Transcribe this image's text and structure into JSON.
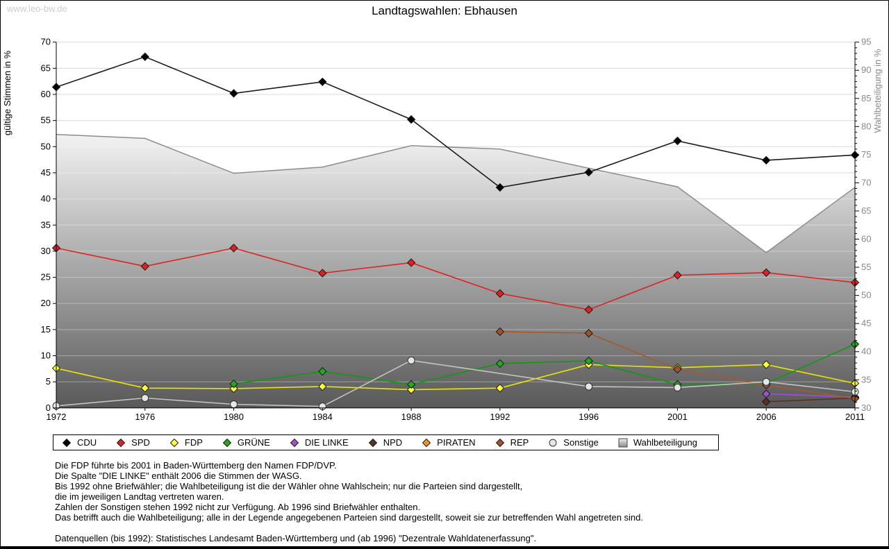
{
  "watermark": "www.leo-bw.de",
  "chart_data": {
    "type": "line",
    "title": "Landtagswahlen: Ebhausen",
    "categories": [
      "1972",
      "1976",
      "1980",
      "1984",
      "1988",
      "1992",
      "1996",
      "2001",
      "2006",
      "2011"
    ],
    "left_axis": {
      "label": "gültige Stimmen in %",
      "min": 0,
      "max": 70,
      "tick_step": 5
    },
    "right_axis": {
      "label": "Wahlbeteiligung in %",
      "min": 30,
      "max": 95,
      "tick_step": 5,
      "minor_step": 1
    },
    "grid": "horizontal",
    "legend_position": "bottom",
    "series": [
      {
        "name": "CDU",
        "axis": "left",
        "type": "line",
        "marker": "diamond",
        "color": "#1a1a1a",
        "fill": "#000000",
        "values": [
          61.4,
          67.2,
          60.2,
          62.4,
          55.2,
          42.2,
          45.1,
          51.1,
          47.4,
          48.4
        ]
      },
      {
        "name": "SPD",
        "axis": "left",
        "type": "line",
        "marker": "diamond",
        "color": "#dd2222",
        "fill": "#e02020",
        "values": [
          30.6,
          27.1,
          30.6,
          25.8,
          27.8,
          21.9,
          18.8,
          25.4,
          25.9,
          24.0
        ]
      },
      {
        "name": "FDP",
        "axis": "left",
        "type": "line",
        "marker": "diamond",
        "color": "#e8e800",
        "fill": "#ffff33",
        "values": [
          7.6,
          3.8,
          3.7,
          4.1,
          3.5,
          3.8,
          8.3,
          7.7,
          8.3,
          4.7
        ]
      },
      {
        "name": "GRÜNE",
        "axis": "left",
        "type": "line",
        "marker": "diamond",
        "color": "#119911",
        "fill": "#1faa1f",
        "values": [
          null,
          null,
          4.6,
          7.0,
          4.5,
          8.5,
          9.0,
          4.5,
          4.7,
          12.2
        ]
      },
      {
        "name": "DIE LINKE",
        "axis": "left",
        "type": "line",
        "marker": "diamond",
        "color": "#a04fd0",
        "fill": "#a050c8",
        "values": [
          null,
          null,
          null,
          null,
          null,
          null,
          null,
          null,
          2.7,
          2.1
        ]
      },
      {
        "name": "NPD",
        "axis": "left",
        "type": "line",
        "marker": "diamond",
        "color": "#54331f",
        "fill": "#553322",
        "values": [
          null,
          null,
          null,
          null,
          null,
          null,
          null,
          null,
          1.2,
          1.9
        ]
      },
      {
        "name": "PIRATEN",
        "axis": "left",
        "type": "line",
        "marker": "diamond",
        "color": "#ee9922",
        "fill": "#ee9522",
        "values": [
          null,
          null,
          null,
          null,
          null,
          null,
          null,
          null,
          null,
          2.0
        ]
      },
      {
        "name": "REP",
        "axis": "left",
        "type": "line",
        "marker": "diamond",
        "color": "#a6592e",
        "fill": "#a0522d",
        "values": [
          null,
          null,
          null,
          null,
          null,
          14.6,
          14.3,
          7.4,
          4.4,
          1.8
        ]
      },
      {
        "name": "Sonstige",
        "axis": "left",
        "type": "line",
        "marker": "circle",
        "color": "#c4c4c4",
        "fill": "#e6e6e6",
        "values": [
          0.4,
          1.9,
          0.7,
          0.3,
          9.1,
          null,
          4.1,
          3.9,
          5.0,
          3.1
        ]
      },
      {
        "name": "Wahlbeteiligung",
        "axis": "right",
        "type": "area",
        "marker": "square",
        "color": "#8c8c8c",
        "fill": "gradient",
        "values": [
          78.6,
          77.9,
          71.7,
          72.8,
          76.6,
          76.0,
          72.6,
          69.3,
          57.6,
          69.2
        ]
      }
    ],
    "area_gradient": {
      "top": "#f2f2f2",
      "bottom": "#595959"
    }
  },
  "footnotes": [
    "Die FDP führte bis 2001 in Baden-Württemberg den Namen FDP/DVP.",
    "Die Spalte \"DIE LINKE\" enthält 2006 die Stimmen der WASG.",
    "Bis 1992 ohne Briefwähler; die Wahlbeteiligung ist die der Wähler ohne Wahlschein; nur die Parteien sind dargestellt,",
    "die im jeweiligen Landtag vertreten waren.",
    "Zahlen der Sonstigen stehen 1992 nicht zur Verfügung. Ab 1996 sind Briefwähler enthalten.",
    "Das betrifft auch die Wahlbeteiligung; alle in der Legende angegebenen Parteien sind dargestellt, soweit sie zur betreffenden Wahl angetreten sind.",
    "",
    "Datenquellen (bis 1992): Statistisches Landesamt Baden-Württemberg und (ab 1996) \"Dezentrale Wahldatenerfassung\"."
  ]
}
